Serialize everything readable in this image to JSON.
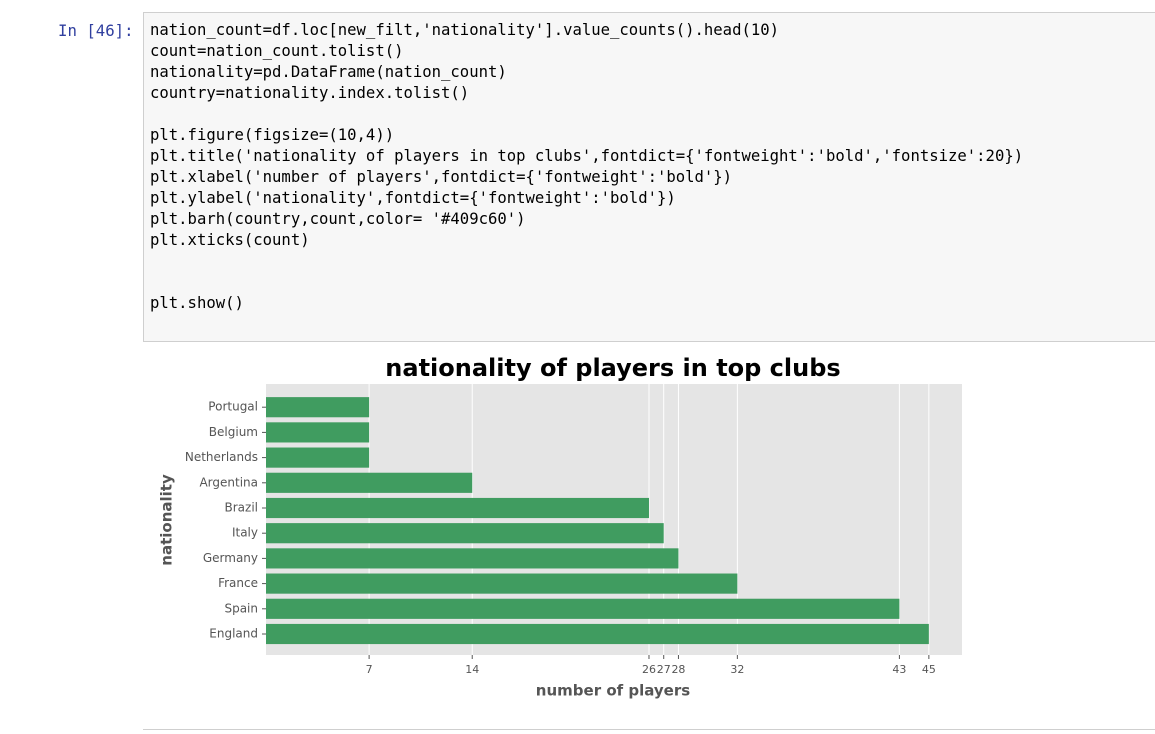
{
  "cell": {
    "prompt": "In [46]:",
    "code": "nation_count=df.loc[new_filt,'nationality'].value_counts().head(10)\ncount=nation_count.tolist()\nnationality=pd.DataFrame(nation_count)\ncountry=nationality.index.tolist()\n\nplt.figure(figsize=(10,4))\nplt.title('nationality of players in top clubs',fontdict={'fontweight':'bold','fontsize':20})\nplt.xlabel('number of players',fontdict={'fontweight':'bold'})\nplt.ylabel('nationality',fontdict={'fontweight':'bold'})\nplt.barh(country,count,color= '#409c60')\nplt.xticks(count)\n\n\nplt.show()"
  },
  "chart_data": {
    "type": "barh",
    "title": "nationality of players in top clubs",
    "xlabel": "number of players",
    "ylabel": "nationality",
    "categories": [
      "England",
      "Spain",
      "France",
      "Germany",
      "Italy",
      "Brazil",
      "Argentina",
      "Netherlands",
      "Belgium",
      "Portugal"
    ],
    "values": [
      45,
      43,
      32,
      28,
      27,
      26,
      14,
      7,
      7,
      7
    ],
    "color": "#409c60",
    "xlim": [
      0,
      47.25
    ],
    "xticks": [
      7,
      14,
      26,
      27,
      28,
      32,
      43,
      45
    ],
    "grid": true
  }
}
